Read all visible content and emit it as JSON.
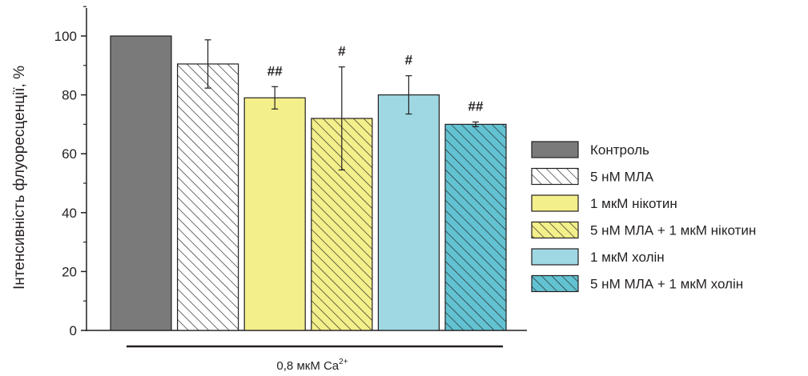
{
  "chart_data": {
    "type": "bar",
    "ylabel": "Інтенсивність флуоресценції, %",
    "ylim": [
      0,
      110
    ],
    "yticks": [
      0,
      20,
      40,
      60,
      80,
      100
    ],
    "group_label_main": "0,8 мкМ Ca",
    "group_label_sup": "2+",
    "series": [
      {
        "name": "Контроль",
        "value": 100,
        "error": null,
        "significance": "",
        "color": "#7a7a7a",
        "hatched": false
      },
      {
        "name": "5 нМ МЛА",
        "value": 90.5,
        "error": 8.2,
        "significance": "",
        "color": "#ffffff",
        "hatched": true
      },
      {
        "name": "1 мкМ нікотин",
        "value": 79,
        "error": 3.8,
        "significance": "##",
        "color": "#f3ef8a",
        "hatched": false
      },
      {
        "name": "5 нМ МЛА + 1 мкМ нікотин",
        "value": 72,
        "error": 17.5,
        "significance": "#",
        "color": "#f3ef8a",
        "hatched": true
      },
      {
        "name": "1 мкМ холін",
        "value": 80,
        "error": 6.5,
        "significance": "#",
        "color": "#9fd8e2",
        "hatched": false
      },
      {
        "name": "5 нМ МЛА + 1 мкМ холін",
        "value": 70,
        "error": 0.8,
        "significance": "##",
        "color": "#62c2d2",
        "hatched": true
      }
    ],
    "legend_position": "right"
  }
}
